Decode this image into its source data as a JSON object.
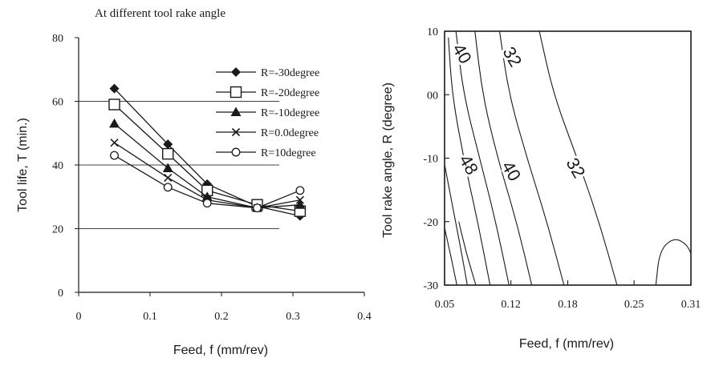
{
  "colors": {
    "ink": "#1a1a1a",
    "grid": "#444444",
    "background": "#ffffff"
  },
  "chart_data": [
    {
      "type": "line",
      "title": "At different tool rake angle",
      "xlabel": "Feed, f (mm/rev)",
      "ylabel": "Tool life, T (min.)",
      "xlim": [
        0,
        0.4
      ],
      "ylim": [
        0,
        80
      ],
      "xticks": [
        0,
        0.1,
        0.2,
        0.3,
        0.4
      ],
      "xtick_labels": [
        "0",
        "0.1",
        "0.2",
        "0.3",
        "0.4"
      ],
      "yticks": [
        0,
        20,
        40,
        60,
        80
      ],
      "ytick_labels": [
        "0",
        "20",
        "40",
        "60",
        "80"
      ],
      "grid": "horizontal",
      "legend": "top-right",
      "x": [
        0.05,
        0.125,
        0.18,
        0.25,
        0.31
      ],
      "series": [
        {
          "name": "R=-30degree",
          "marker": "diamond",
          "values": [
            64,
            46.5,
            34,
            27,
            24
          ]
        },
        {
          "name": "R=-20degree",
          "marker": "square-open",
          "values": [
            59,
            43.5,
            32,
            27.5,
            25.5
          ]
        },
        {
          "name": "R=-10degree",
          "marker": "triangle",
          "values": [
            53,
            39,
            30,
            26.5,
            27.5
          ]
        },
        {
          "name": "R=0.0degree",
          "marker": "x",
          "values": [
            47,
            36,
            29,
            26.5,
            29
          ]
        },
        {
          "name": "R=10degree",
          "marker": "circle-open",
          "values": [
            43,
            33,
            28,
            26.5,
            32
          ]
        }
      ]
    },
    {
      "type": "contour",
      "xlabel": "Feed, f (mm/rev)",
      "ylabel": "Tool rake angle, R (degree)",
      "xlim": [
        0.05,
        0.31
      ],
      "ylim": [
        -30,
        10
      ],
      "xticks": [
        0.05,
        0.12,
        0.18,
        0.25,
        0.31
      ],
      "xtick_labels": [
        "0.05",
        "0.12",
        "0.18",
        "0.25",
        "0.31"
      ],
      "yticks": [
        10,
        0,
        -10,
        -20,
        -30
      ],
      "ytick_labels": [
        "10",
        "00",
        "-10",
        "-20",
        "-30"
      ],
      "contour_labels": [
        {
          "text": "40",
          "f": 0.063,
          "R": 6
        },
        {
          "text": "32",
          "f": 0.116,
          "R": 5.5
        },
        {
          "text": "48",
          "f": 0.07,
          "R": -11.5
        },
        {
          "text": "40",
          "f": 0.115,
          "R": -12.5
        },
        {
          "text": "32",
          "f": 0.183,
          "R": -12
        }
      ],
      "contours": [
        [
          [
            0.054,
            9
          ],
          [
            0.058,
            0
          ],
          [
            0.07,
            -10
          ],
          [
            0.085,
            -20
          ],
          [
            0.098,
            -30
          ]
        ],
        [
          [
            0.062,
            10
          ],
          [
            0.07,
            0
          ],
          [
            0.087,
            -10
          ],
          [
            0.104,
            -20
          ],
          [
            0.118,
            -30
          ]
        ],
        [
          [
            0.082,
            10
          ],
          [
            0.09,
            0
          ],
          [
            0.106,
            -10
          ],
          [
            0.126,
            -20
          ],
          [
            0.142,
            -30
          ]
        ],
        [
          [
            0.108,
            10
          ],
          [
            0.118,
            0
          ],
          [
            0.137,
            -10
          ],
          [
            0.158,
            -20
          ],
          [
            0.176,
            -30
          ]
        ],
        [
          [
            0.15,
            10
          ],
          [
            0.165,
            0
          ],
          [
            0.19,
            -10
          ],
          [
            0.213,
            -20
          ],
          [
            0.232,
            -30
          ]
        ],
        [
          [
            0.05,
            -21
          ],
          [
            0.056,
            -25
          ],
          [
            0.063,
            -30
          ]
        ],
        [
          [
            0.05,
            -11
          ],
          [
            0.059,
            -18
          ],
          [
            0.068,
            -25
          ],
          [
            0.074,
            -30
          ]
        ],
        [
          [
            0.065,
            -20
          ],
          [
            0.073,
            -25
          ],
          [
            0.083,
            -30
          ]
        ],
        [
          [
            0.273,
            -30
          ],
          [
            0.277,
            -24.5
          ],
          [
            0.292,
            -22.5
          ],
          [
            0.305,
            -23.5
          ],
          [
            0.31,
            -25
          ]
        ]
      ]
    }
  ]
}
